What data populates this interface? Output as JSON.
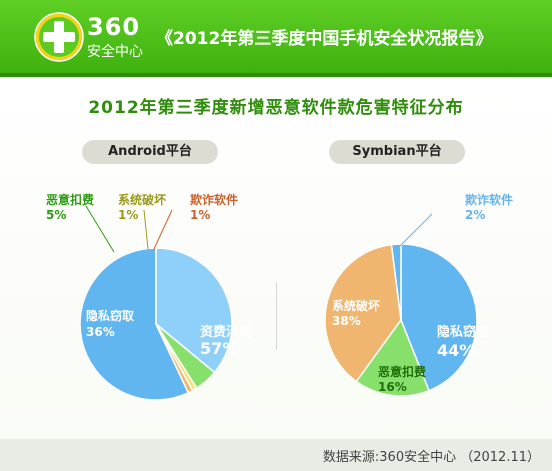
{
  "header": {
    "logo_number": "360",
    "logo_subtitle": "安全中心",
    "report_title": "《2012年第三季度中国手机安全状况报告》"
  },
  "colors": {
    "banner_green": "#4fc11a",
    "title_green": "#2f8d0b",
    "slice_blue": "#62b6ef",
    "slice_sky": "#8fd0fb",
    "slice_green": "#88e06c",
    "slice_orange": "#f0b56f",
    "slice_yellow": "#f3e27a",
    "label_green": "#2f9a14",
    "label_olive": "#9a9a1e",
    "label_brown": "#c8622d",
    "label_blue": "#67b3e8"
  },
  "chart_data": [
    {
      "type": "pie",
      "title": "2012年第三季度新增恶意软件款危害特征分布",
      "platform": "Android平台",
      "slices": [
        {
          "label": "资费消耗",
          "value": 57,
          "text": "57%",
          "color": "#62b6ef",
          "label_color": "#ffffff"
        },
        {
          "label": "隐私窃取",
          "value": 36,
          "text": "36%",
          "color": "#8fd0fb",
          "label_color": "#ffffff"
        },
        {
          "label": "恶意扣费",
          "value": 5,
          "text": "5%",
          "color": "#88e06c",
          "label_color": "#2f9a14"
        },
        {
          "label": "系统破坏",
          "value": 1,
          "text": "1%",
          "color": "#f3e27a",
          "label_color": "#9a9a1e"
        },
        {
          "label": "欺诈软件",
          "value": 1,
          "text": "1%",
          "color": "#f0b56f",
          "label_color": "#c8622d"
        }
      ]
    },
    {
      "type": "pie",
      "platform": "Symbian平台",
      "slices": [
        {
          "label": "隐私窃取",
          "value": 44,
          "text": "44%",
          "color": "#62b6ef",
          "label_color": "#ffffff"
        },
        {
          "label": "恶意扣费",
          "value": 16,
          "text": "16%",
          "color": "#88e06c",
          "label_color": "#1f6f0a"
        },
        {
          "label": "系统破坏",
          "value": 38,
          "text": "38%",
          "color": "#f0b56f",
          "label_color": "#ffffff"
        },
        {
          "label": "欺诈软件",
          "value": 2,
          "text": "2%",
          "color": "#62b6ef",
          "label_color": "#67b3e8"
        }
      ]
    }
  ],
  "footer": {
    "source": "数据来源:360安全中心 （2012.11）"
  }
}
